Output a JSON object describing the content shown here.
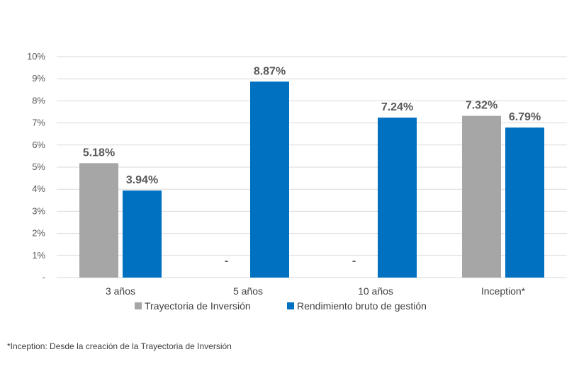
{
  "chart_data": {
    "type": "bar",
    "categories": [
      "3 años",
      "5 años",
      "10 años",
      "Inception*"
    ],
    "series": [
      {
        "name": "Trayectoria de Inversión",
        "values": [
          5.18,
          null,
          null,
          7.32
        ],
        "labels": [
          "5.18%",
          "-",
          "-",
          "7.32%"
        ]
      },
      {
        "name": "Rendimiento bruto de gestión",
        "values": [
          3.94,
          8.87,
          7.24,
          6.79
        ],
        "labels": [
          "3.94%",
          "8.87%",
          "7.24%",
          "6.79%"
        ]
      }
    ],
    "y_ticks": [
      "-",
      "1%",
      "2%",
      "3%",
      "4%",
      "5%",
      "6%",
      "7%",
      "8%",
      "9%",
      "10%"
    ],
    "ylim": [
      0,
      10
    ],
    "y_unit": "%",
    "grid": true,
    "legend_position": "bottom",
    "colors": {
      "series_0": "#A6A6A6",
      "series_1": "#0070C0",
      "grid": "#D9D9D9"
    }
  },
  "footnote": "*Inception: Desde la creación de la Trayectoria de Inversión"
}
